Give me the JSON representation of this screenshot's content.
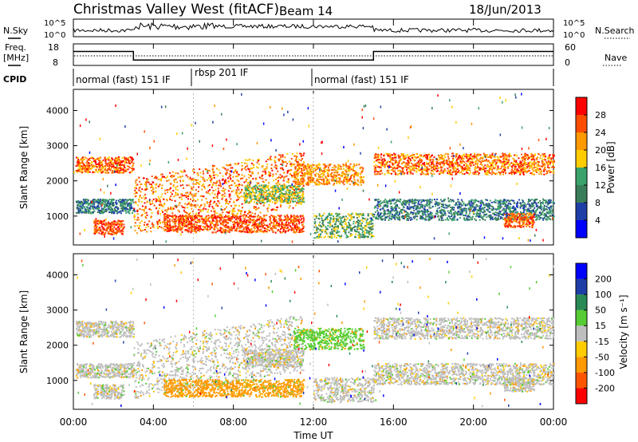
{
  "header": {
    "station": "Christmas Valley West (fitACF)",
    "beam": "Beam 14",
    "date": "18/Jun/2013"
  },
  "labels": {
    "nsky": "N.Sky",
    "nsearch": "N.Search",
    "freq_l1": "Freq.",
    "freq_l2": "[MHz]",
    "nave": "Nave",
    "cpid": "CPID",
    "nsky_hi": "10^5",
    "nsky_lo": "10^0",
    "nsearch_hi": "10^5",
    "nsearch_lo": "10^0",
    "freq_hi": "18",
    "freq_lo": "8",
    "nave_hi": "60",
    "nave_lo": "0",
    "xlabel": "Time UT",
    "ylabel": "Slant Range [km]",
    "power_label": "Power [dB]",
    "velocity_label": "Velocity [m s⁻¹]"
  },
  "colors": {
    "power": [
      "#0000ff",
      "#1f3fa8",
      "#3a7d5a",
      "#3aa36b",
      "#ffcc00",
      "#ff9900",
      "#ff4d00",
      "#ff0000"
    ],
    "velocity": [
      "#ff0000",
      "#ff5500",
      "#ff9900",
      "#ffcc00",
      "#bebebe",
      "#55cc33",
      "#2a8a55",
      "#1f3fa8",
      "#0000ff"
    ],
    "ground": "#bebebe"
  },
  "chart_data": [
    {
      "type": "heatmap",
      "name": "N.Sky / N.Search / Freq / Nave / CPID summary",
      "x_ticks": [
        "00:00",
        "04:00",
        "08:00",
        "12:00",
        "16:00",
        "20:00",
        "00:00"
      ],
      "x_range_hours": [
        0,
        24
      ],
      "freq_mhz": {
        "x_hours": [
          0,
          3.0,
          3.0,
          15.0,
          15.0,
          24
        ],
        "values": [
          14.5,
          14.5,
          10.5,
          10.5,
          14.5,
          14.5
        ]
      },
      "cpid_segments": [
        {
          "label": "normal (fast) 151 IF",
          "start_hours": 0,
          "end_hours": 6
        },
        {
          "label": "rbsp 201 IF",
          "start_hours": 6,
          "end_hours": 12
        },
        {
          "label": "normal (fast) 151 IF",
          "start_hours": 12,
          "end_hours": 24
        }
      ]
    },
    {
      "type": "heatmap",
      "name": "Power",
      "ylabel": "Slant Range [km]",
      "y_range_km": [
        180,
        4600
      ],
      "y_ticks": [
        1000,
        2000,
        3000,
        4000
      ],
      "x_ticks": [
        "00:00",
        "04:00",
        "08:00",
        "12:00",
        "16:00",
        "20:00",
        "00:00"
      ],
      "colorbar_ticks": [
        4,
        8,
        12,
        16,
        20,
        24,
        28
      ],
      "colorbar_range": [
        0,
        32
      ],
      "units": "dB"
    },
    {
      "type": "heatmap",
      "name": "Velocity",
      "ylabel": "Slant Range [km]",
      "y_range_km": [
        180,
        4600
      ],
      "y_ticks": [
        1000,
        2000,
        3000,
        4000
      ],
      "x_ticks": [
        "00:00",
        "04:00",
        "08:00",
        "12:00",
        "16:00",
        "20:00",
        "00:00"
      ],
      "colorbar_ticks": [
        -200,
        -100,
        -50,
        -15,
        15,
        50,
        100,
        200
      ],
      "units": "m s-1"
    }
  ]
}
